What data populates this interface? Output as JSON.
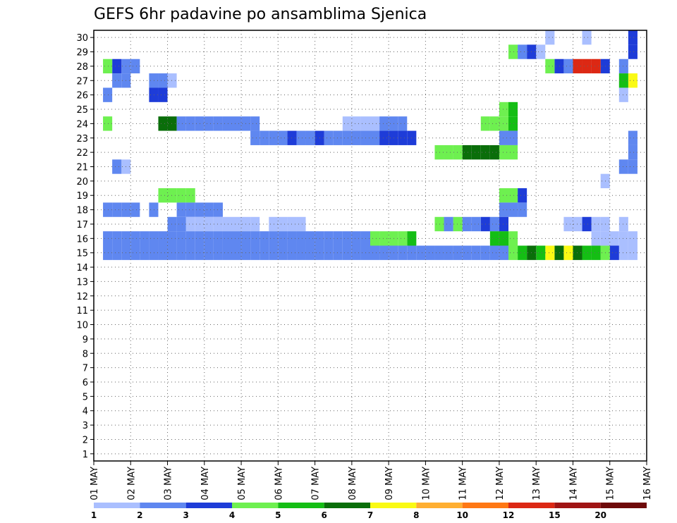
{
  "chart_data": {
    "type": "heatmap",
    "title": "GEFS 6hr padavine po ansamblima Sjenica",
    "xlabel": "",
    "ylabel": "",
    "x_tick_labels": [
      "01 MAY",
      "02 MAY",
      "03 MAY",
      "04 MAY",
      "05 MAY",
      "06 MAY",
      "07 MAY",
      "08 MAY",
      "09 MAY",
      "10 MAY",
      "11 MAY",
      "12 MAY",
      "13 MAY",
      "14 MAY",
      "15 MAY",
      "16 MAY"
    ],
    "y_tick_labels": [
      "1",
      "2",
      "3",
      "4",
      "5",
      "6",
      "7",
      "8",
      "9",
      "10",
      "11",
      "12",
      "13",
      "14",
      "15",
      "16",
      "17",
      "18",
      "19",
      "20",
      "21",
      "22",
      "23",
      "24",
      "25",
      "26",
      "27",
      "28",
      "29",
      "30"
    ],
    "grid": true,
    "x_step_hours": 6,
    "legend": {
      "placement": "bottom",
      "labels": [
        "1",
        "2",
        "3",
        "4",
        "5",
        "6",
        "7",
        "8",
        "10",
        "12",
        "15",
        "20"
      ],
      "colors": [
        "#aabfff",
        "#5f87f0",
        "#1e3cd8",
        "#6ef050",
        "#14be14",
        "#0a6e0a",
        "#fafa14",
        "#ffaf32",
        "#ff7814",
        "#dc2814",
        "#a01414",
        "#6e0a0a"
      ]
    },
    "cells": [
      [
        58,
        29,
        3
      ],
      [
        58,
        30,
        3
      ],
      [
        53,
        30,
        1
      ],
      [
        49,
        30,
        1
      ],
      [
        48,
        29,
        1
      ],
      [
        47,
        29,
        3
      ],
      [
        46,
        29,
        2
      ],
      [
        45,
        29,
        4
      ],
      [
        51,
        28,
        2
      ],
      [
        50,
        28,
        3
      ],
      [
        49,
        28,
        4
      ],
      [
        4,
        28,
        2
      ],
      [
        3,
        28,
        2
      ],
      [
        2,
        28,
        3
      ],
      [
        1,
        28,
        4
      ],
      [
        57,
        28,
        2
      ],
      [
        55,
        28,
        3
      ],
      [
        54,
        28,
        10
      ],
      [
        53,
        28,
        10
      ],
      [
        52,
        28,
        10
      ],
      [
        8,
        27,
        1
      ],
      [
        7,
        27,
        2
      ],
      [
        6,
        27,
        2
      ],
      [
        3,
        27,
        2
      ],
      [
        2,
        27,
        2
      ],
      [
        58,
        27,
        7
      ],
      [
        57,
        27,
        5
      ],
      [
        7,
        26,
        3
      ],
      [
        6,
        26,
        3
      ],
      [
        57,
        26,
        1
      ],
      [
        1,
        26,
        2
      ],
      [
        45,
        25,
        5
      ],
      [
        44,
        25,
        4
      ],
      [
        8,
        24,
        6
      ],
      [
        7,
        24,
        6
      ],
      [
        1,
        24,
        4
      ],
      [
        45,
        24,
        5
      ],
      [
        44,
        24,
        4
      ],
      [
        43,
        24,
        4
      ],
      [
        42,
        24,
        4
      ],
      [
        33,
        24,
        2
      ],
      [
        32,
        24,
        2
      ],
      [
        31,
        24,
        2
      ],
      [
        30,
        24,
        1
      ],
      [
        29,
        24,
        1
      ],
      [
        28,
        24,
        1
      ],
      [
        27,
        24,
        1
      ],
      [
        17,
        24,
        2
      ],
      [
        16,
        24,
        2
      ],
      [
        15,
        24,
        2
      ],
      [
        14,
        24,
        2
      ],
      [
        13,
        24,
        2
      ],
      [
        12,
        24,
        2
      ],
      [
        11,
        24,
        2
      ],
      [
        10,
        24,
        2
      ],
      [
        9,
        24,
        2
      ],
      [
        58,
        23,
        2
      ],
      [
        45,
        23,
        2
      ],
      [
        44,
        23,
        2
      ],
      [
        34,
        23,
        3
      ],
      [
        33,
        23,
        3
      ],
      [
        32,
        23,
        3
      ],
      [
        31,
        23,
        3
      ],
      [
        30,
        23,
        2
      ],
      [
        29,
        23,
        2
      ],
      [
        28,
        23,
        2
      ],
      [
        27,
        23,
        2
      ],
      [
        26,
        23,
        2
      ],
      [
        25,
        23,
        2
      ],
      [
        24,
        23,
        3
      ],
      [
        23,
        23,
        2
      ],
      [
        22,
        23,
        2
      ],
      [
        21,
        23,
        3
      ],
      [
        20,
        23,
        2
      ],
      [
        19,
        23,
        2
      ],
      [
        18,
        23,
        2
      ],
      [
        17,
        23,
        2
      ],
      [
        58,
        22,
        2
      ],
      [
        45,
        22,
        4
      ],
      [
        44,
        22,
        4
      ],
      [
        43,
        22,
        6
      ],
      [
        42,
        22,
        6
      ],
      [
        41,
        22,
        6
      ],
      [
        40,
        22,
        6
      ],
      [
        39,
        22,
        4
      ],
      [
        38,
        22,
        4
      ],
      [
        37,
        22,
        4
      ],
      [
        58,
        21,
        2
      ],
      [
        57,
        21,
        2
      ],
      [
        3,
        21,
        1
      ],
      [
        2,
        21,
        2
      ],
      [
        55,
        20,
        1
      ],
      [
        46,
        19,
        3
      ],
      [
        45,
        19,
        4
      ],
      [
        44,
        19,
        4
      ],
      [
        10,
        19,
        4
      ],
      [
        9,
        19,
        4
      ],
      [
        8,
        19,
        4
      ],
      [
        7,
        19,
        4
      ],
      [
        46,
        18,
        2
      ],
      [
        45,
        18,
        2
      ],
      [
        44,
        18,
        2
      ],
      [
        13,
        18,
        2
      ],
      [
        12,
        18,
        2
      ],
      [
        11,
        18,
        2
      ],
      [
        10,
        18,
        2
      ],
      [
        9,
        18,
        2
      ],
      [
        6,
        18,
        2
      ],
      [
        4,
        18,
        2
      ],
      [
        3,
        18,
        2
      ],
      [
        2,
        18,
        2
      ],
      [
        1,
        18,
        2
      ],
      [
        57,
        17,
        1
      ],
      [
        55,
        17,
        1
      ],
      [
        54,
        17,
        1
      ],
      [
        53,
        17,
        3
      ],
      [
        52,
        17,
        1
      ],
      [
        51,
        17,
        1
      ],
      [
        44,
        17,
        3
      ],
      [
        43,
        17,
        2
      ],
      [
        42,
        17,
        3
      ],
      [
        41,
        17,
        2
      ],
      [
        40,
        17,
        2
      ],
      [
        39,
        17,
        4
      ],
      [
        38,
        17,
        2
      ],
      [
        37,
        17,
        4
      ],
      [
        22,
        17,
        1
      ],
      [
        21,
        17,
        1
      ],
      [
        20,
        17,
        1
      ],
      [
        19,
        17,
        1
      ],
      [
        17,
        17,
        1
      ],
      [
        16,
        17,
        1
      ],
      [
        15,
        17,
        1
      ],
      [
        14,
        17,
        1
      ],
      [
        13,
        17,
        1
      ],
      [
        12,
        17,
        1
      ],
      [
        11,
        17,
        1
      ],
      [
        10,
        17,
        1
      ],
      [
        9,
        17,
        2
      ],
      [
        8,
        17,
        2
      ],
      [
        58,
        16,
        1
      ],
      [
        57,
        16,
        1
      ],
      [
        56,
        16,
        1
      ],
      [
        55,
        16,
        1
      ],
      [
        54,
        16,
        1
      ],
      [
        45,
        16,
        4
      ],
      [
        44,
        16,
        5
      ],
      [
        43,
        16,
        5
      ],
      [
        34,
        16,
        5
      ],
      [
        33,
        16,
        4
      ],
      [
        32,
        16,
        4
      ],
      [
        31,
        16,
        4
      ],
      [
        30,
        16,
        4
      ],
      [
        29,
        16,
        2
      ],
      [
        28,
        16,
        2
      ],
      [
        27,
        16,
        2
      ],
      [
        26,
        16,
        2
      ],
      [
        25,
        16,
        2
      ],
      [
        24,
        16,
        2
      ],
      [
        23,
        16,
        2
      ],
      [
        22,
        16,
        2
      ],
      [
        21,
        16,
        2
      ],
      [
        20,
        16,
        2
      ],
      [
        19,
        16,
        2
      ],
      [
        18,
        16,
        2
      ],
      [
        17,
        16,
        2
      ],
      [
        16,
        16,
        2
      ],
      [
        15,
        16,
        2
      ],
      [
        14,
        16,
        2
      ],
      [
        13,
        16,
        2
      ],
      [
        12,
        16,
        2
      ],
      [
        11,
        16,
        2
      ],
      [
        10,
        16,
        2
      ],
      [
        9,
        16,
        2
      ],
      [
        8,
        16,
        2
      ],
      [
        7,
        16,
        2
      ],
      [
        6,
        16,
        2
      ],
      [
        5,
        16,
        2
      ],
      [
        4,
        16,
        2
      ],
      [
        3,
        16,
        2
      ],
      [
        2,
        16,
        2
      ],
      [
        1,
        16,
        2
      ],
      [
        58,
        15,
        1
      ],
      [
        57,
        15,
        1
      ],
      [
        56,
        15,
        3
      ],
      [
        55,
        15,
        4
      ],
      [
        54,
        15,
        5
      ],
      [
        53,
        15,
        5
      ],
      [
        52,
        15,
        6
      ],
      [
        51,
        15,
        7
      ],
      [
        50,
        15,
        6
      ],
      [
        49,
        15,
        7
      ],
      [
        48,
        15,
        5
      ],
      [
        47,
        15,
        6
      ],
      [
        46,
        15,
        5
      ],
      [
        45,
        15,
        4
      ],
      [
        44,
        15,
        2
      ],
      [
        43,
        15,
        2
      ],
      [
        42,
        15,
        2
      ],
      [
        41,
        15,
        2
      ],
      [
        40,
        15,
        2
      ],
      [
        39,
        15,
        2
      ],
      [
        38,
        15,
        2
      ],
      [
        37,
        15,
        2
      ],
      [
        36,
        15,
        2
      ],
      [
        35,
        15,
        2
      ],
      [
        34,
        15,
        2
      ],
      [
        33,
        15,
        2
      ],
      [
        32,
        15,
        2
      ],
      [
        31,
        15,
        2
      ],
      [
        30,
        15,
        2
      ],
      [
        29,
        15,
        2
      ],
      [
        28,
        15,
        2
      ],
      [
        27,
        15,
        2
      ],
      [
        26,
        15,
        2
      ],
      [
        25,
        15,
        2
      ],
      [
        24,
        15,
        2
      ],
      [
        23,
        15,
        2
      ],
      [
        22,
        15,
        2
      ],
      [
        21,
        15,
        2
      ],
      [
        20,
        15,
        2
      ],
      [
        19,
        15,
        2
      ],
      [
        18,
        15,
        2
      ],
      [
        17,
        15,
        2
      ],
      [
        16,
        15,
        2
      ],
      [
        15,
        15,
        2
      ],
      [
        14,
        15,
        2
      ],
      [
        13,
        15,
        2
      ],
      [
        12,
        15,
        2
      ],
      [
        11,
        15,
        2
      ],
      [
        10,
        15,
        2
      ],
      [
        9,
        15,
        2
      ],
      [
        8,
        15,
        2
      ],
      [
        7,
        15,
        2
      ],
      [
        6,
        15,
        2
      ],
      [
        5,
        15,
        2
      ],
      [
        4,
        15,
        2
      ],
      [
        3,
        15,
        2
      ],
      [
        2,
        15,
        2
      ],
      [
        1,
        15,
        2
      ]
    ]
  },
  "page": {
    "title": "GEFS 6hr padavine po ansamblima Sjenica"
  }
}
